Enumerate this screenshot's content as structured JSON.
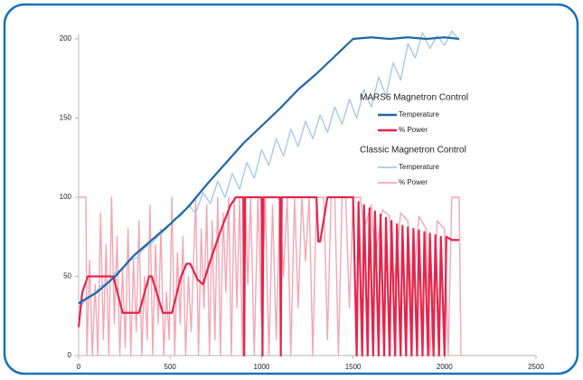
{
  "chart_data": {
    "type": "line",
    "xlim": [
      0,
      2500
    ],
    "ylim": [
      0,
      200
    ],
    "xticks": [
      0,
      500,
      1000,
      1500,
      2000,
      2500
    ],
    "yticks": [
      0,
      50,
      100,
      150,
      200
    ],
    "series_groups": [
      {
        "name": "MARS6 Magnetron Control",
        "series": [
          {
            "name": "Temperature",
            "color": "#1f68a6",
            "x": [
              0,
              100,
              200,
              300,
              400,
              500,
              600,
              700,
              800,
              900,
              1000,
              1100,
              1200,
              1300,
              1400,
              1500,
              1600,
              1700,
              1800,
              1900,
              2000,
              2080
            ],
            "values": [
              33,
              40,
              50,
              63,
              73,
              83,
              94,
              108,
              121,
              134,
              145,
              156,
              168,
              178,
              189,
              200,
              201,
              200,
              201,
              200,
              201,
              200
            ]
          },
          {
            "name": "% Power",
            "color": "#e5254c",
            "x": [
              0,
              20,
              50,
              190,
              240,
              330,
              385,
              400,
              460,
              510,
              560,
              590,
              610,
              650,
              680,
              720,
              780,
              830,
              860,
              900,
              905,
              910,
              1000,
              1005,
              1010,
              1100,
              1105,
              1110,
              1300,
              1310,
              1320,
              1360,
              1500,
              1520,
              1530,
              1550,
              1560,
              1580,
              1590,
              1610,
              1620,
              1640,
              1650,
              1670,
              1680,
              1700,
              1710,
              1730,
              1740,
              1760,
              1770,
              1790,
              1800,
              1820,
              1830,
              1850,
              1860,
              1880,
              1890,
              1910,
              1920,
              1940,
              1950,
              1970,
              1980,
              2000,
              2010,
              2040,
              2080
            ],
            "values": [
              18,
              40,
              50,
              50,
              27,
              27,
              50,
              50,
              27,
              27,
              50,
              58,
              58,
              48,
              45,
              60,
              80,
              95,
              100,
              100,
              0,
              100,
              100,
              0,
              100,
              100,
              0,
              100,
              100,
              72,
              72,
              100,
              100,
              0,
              97,
              0,
              95,
              0,
              93,
              0,
              91,
              0,
              89,
              0,
              87,
              0,
              85,
              0,
              83,
              0,
              82,
              0,
              81,
              0,
              80,
              0,
              79,
              0,
              78,
              0,
              77,
              0,
              76,
              0,
              75,
              0,
              75,
              73,
              73
            ]
          }
        ]
      },
      {
        "name": "Classic Magnetron Control",
        "series": [
          {
            "name": "Temperature",
            "color": "#a9c8ea",
            "x": [
              0,
              40,
              80,
              120,
              160,
              200,
              240,
              280,
              320,
              360,
              400,
              440,
              480,
              520,
              560,
              600,
              640,
              680,
              720,
              760,
              800,
              840,
              880,
              920,
              960,
              1000,
              1040,
              1080,
              1120,
              1160,
              1200,
              1240,
              1280,
              1320,
              1360,
              1400,
              1440,
              1480,
              1520,
              1560,
              1600,
              1640,
              1680,
              1720,
              1760,
              1800,
              1840,
              1880,
              1920,
              1960,
              2000,
              2040,
              2080
            ],
            "values": [
              30,
              35,
              38,
              44,
              46,
              52,
              55,
              60,
              62,
              68,
              71,
              76,
              80,
              86,
              88,
              95,
              90,
              103,
              96,
              110,
              100,
              115,
              105,
              122,
              112,
              130,
              120,
              137,
              126,
              143,
              132,
              148,
              137,
              152,
              141,
              157,
              146,
              162,
              150,
              168,
              157,
              176,
              164,
              185,
              174,
              197,
              188,
              204,
              194,
              202,
              196,
              205,
              199
            ]
          },
          {
            "name": "% Power",
            "color": "#f2a7b4",
            "x": [
              0,
              40,
              45,
              60,
              75,
              90,
              105,
              120,
              135,
              150,
              165,
              180,
              195,
              210,
              225,
              240,
              255,
              270,
              285,
              300,
              315,
              330,
              345,
              360,
              375,
              390,
              405,
              420,
              435,
              450,
              465,
              480,
              495,
              510,
              525,
              540,
              555,
              570,
              585,
              600,
              615,
              640,
              655,
              670,
              685,
              700,
              715,
              730,
              745,
              760,
              775,
              790,
              805,
              820,
              835,
              850,
              865,
              880,
              895,
              910,
              925,
              940,
              960,
              980,
              1000,
              1020,
              1040,
              1060,
              1080,
              1100,
              1120,
              1140,
              1160,
              1180,
              1200,
              1220,
              1240,
              1260,
              1280,
              1300,
              1340,
              1360,
              1380,
              1400,
              1420,
              1440,
              1460,
              1480,
              1500,
              1540,
              1560,
              1600,
              1620,
              1660,
              1700,
              1720,
              1760,
              1800,
              1820,
              1860,
              1900,
              1920,
              1960,
              2000,
              2020,
              2040,
              2080,
              2090
            ],
            "values": [
              100,
              100,
              0,
              60,
              0,
              45,
              0,
              90,
              10,
              70,
              0,
              100,
              20,
              75,
              0,
              55,
              5,
              80,
              0,
              60,
              15,
              85,
              0,
              50,
              10,
              95,
              0,
              70,
              20,
              80,
              0,
              40,
              10,
              100,
              0,
              65,
              20,
              75,
              0,
              50,
              15,
              100,
              0,
              80,
              30,
              95,
              0,
              85,
              10,
              100,
              0,
              90,
              40,
              100,
              0,
              100,
              30,
              100,
              0,
              100,
              45,
              100,
              0,
              100,
              20,
              100,
              0,
              95,
              10,
              100,
              50,
              100,
              0,
              100,
              30,
              100,
              60,
              100,
              0,
              100,
              100,
              10,
              100,
              100,
              0,
              100,
              100,
              30,
              100,
              100,
              80,
              95,
              60,
              92,
              88,
              40,
              90,
              85,
              30,
              88,
              80,
              0,
              85,
              80,
              0,
              100,
              100,
              0
            ]
          }
        ]
      }
    ]
  }
}
